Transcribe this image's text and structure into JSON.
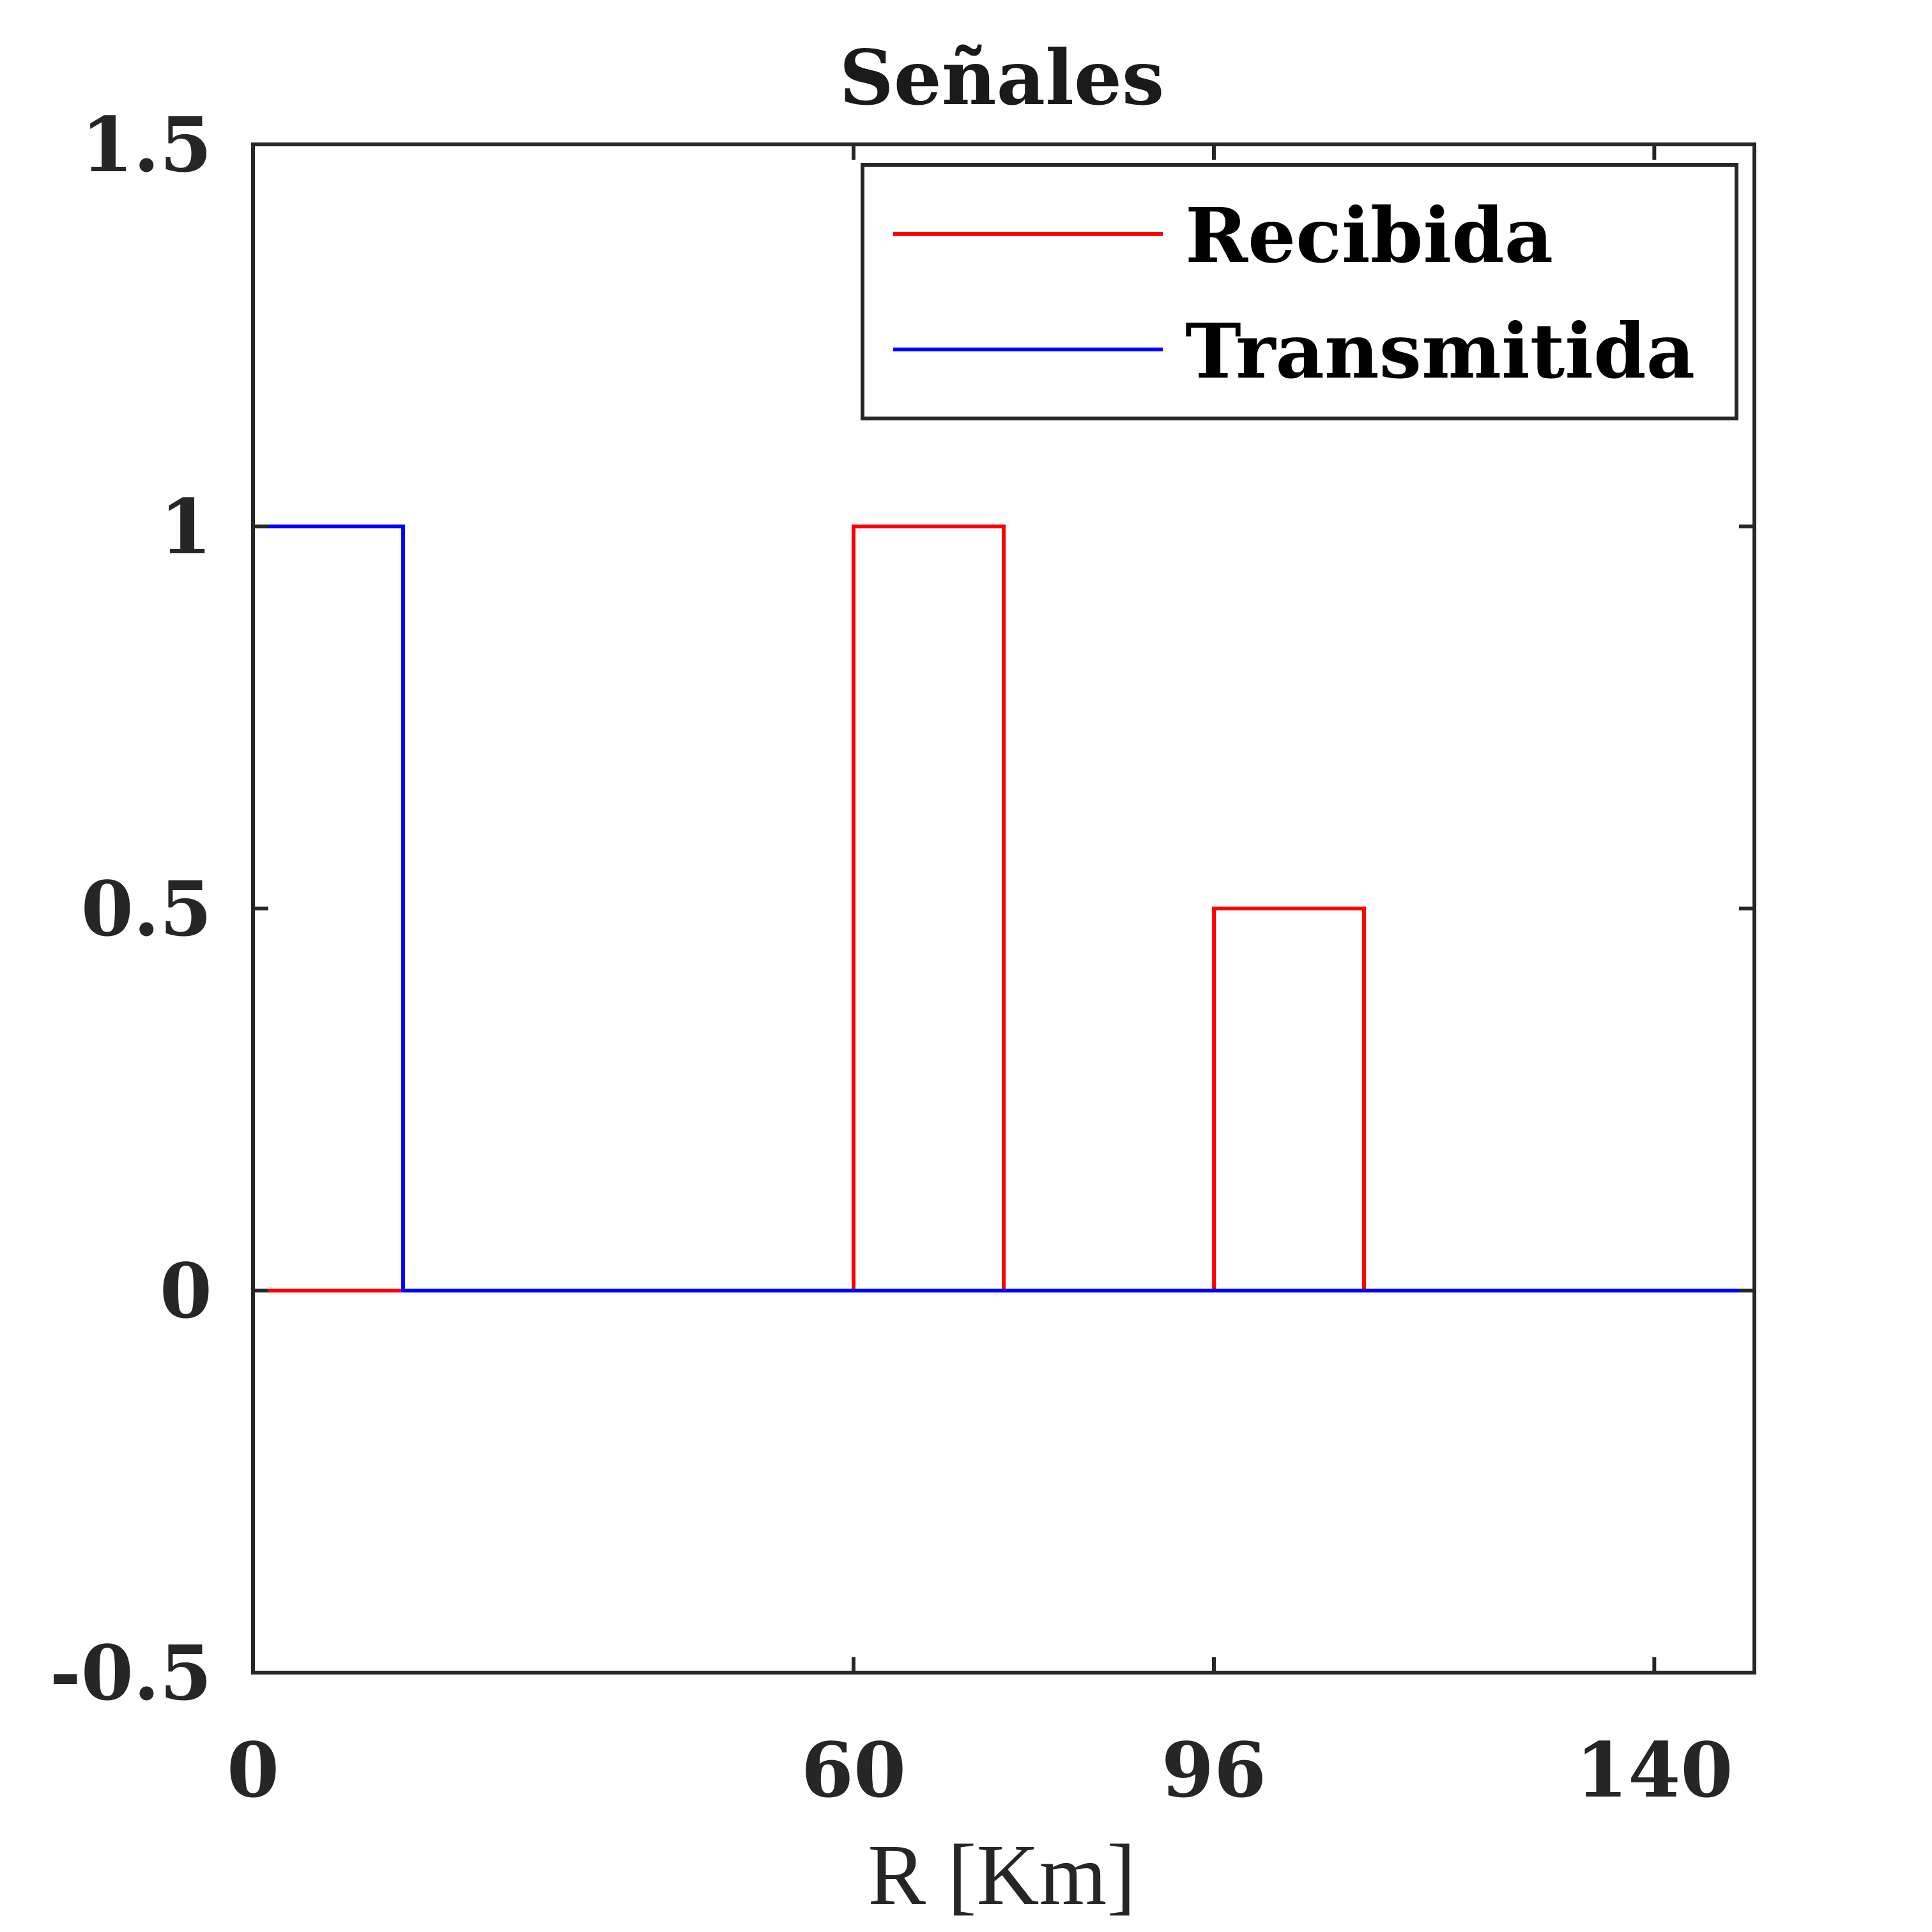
{
  "chart_data": {
    "type": "line",
    "title": "Señales",
    "xlabel": "R [Km]",
    "ylabel": "",
    "xlim": [
      0,
      150
    ],
    "ylim": [
      -0.5,
      1.5
    ],
    "xticks": [
      0,
      60,
      96,
      140
    ],
    "xtick_labels": [
      "0",
      "60",
      "96",
      "140"
    ],
    "yticks": [
      -0.5,
      0,
      0.5,
      1,
      1.5
    ],
    "ytick_labels": [
      "-0.5",
      "0",
      "0.5",
      "1",
      "1.5"
    ],
    "grid": false,
    "legend_position": "top-right",
    "series": [
      {
        "name": "Recibida",
        "color": "#ff0000",
        "x": [
          0,
          60,
          60,
          75,
          75,
          96,
          96,
          111,
          111,
          150
        ],
        "y": [
          0,
          0,
          1,
          1,
          0,
          0,
          0.5,
          0.5,
          0,
          0
        ]
      },
      {
        "name": "Transmitida",
        "color": "#0000ff",
        "x": [
          0,
          15,
          15,
          150
        ],
        "y": [
          1,
          1,
          0,
          0
        ]
      }
    ]
  }
}
